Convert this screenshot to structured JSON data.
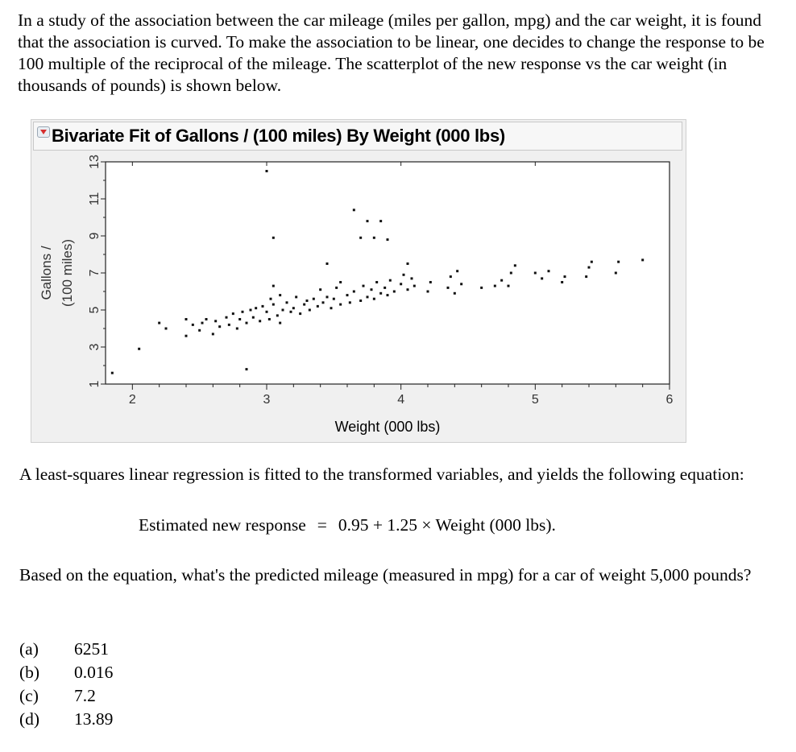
{
  "question": {
    "intro": "In a study of the association between the car mileage (miles per gallon, mpg) and the car weight, it is found that the association is curved. To make the association to be linear, one decides to change the response to be 100 multiple of the reciprocal of the mileage. The scatterplot of the new response vs the car weight (in thousands of pounds) is shown below.",
    "regression_text": "A least-squares linear regression is fitted to the transformed variables, and yields the following equation:",
    "equation_lhs": "Estimated new response",
    "equation_eq": "=",
    "equation_rhs": "0.95 + 1.25 × Weight (000 lbs).",
    "prompt": "Based on the equation, what's the predicted mileage (measured in mpg) for a car of weight 5,000 pounds?",
    "choices": [
      {
        "letter": "(a)",
        "text": "6251"
      },
      {
        "letter": "(b)",
        "text": "0.016"
      },
      {
        "letter": "(c)",
        "text": "7.2"
      },
      {
        "letter": "(d)",
        "text": "13.89"
      }
    ]
  },
  "panel": {
    "title": "Bivariate Fit of Gallons / (100 miles) By Weight (000 lbs)",
    "collapse_icon": "red-triangle-disclosure-icon"
  },
  "chart_data": {
    "type": "scatter",
    "title": "Bivariate Fit of Gallons / (100 miles) By Weight (000 lbs)",
    "xlabel": "Weight (000 lbs)",
    "ylabel": [
      "Gallons /",
      "(100 miles)"
    ],
    "xlim": [
      1.8,
      6.0
    ],
    "ylim": [
      1,
      13
    ],
    "xticks": [
      "2",
      "3",
      "4",
      "5",
      "6"
    ],
    "yticks": [
      "13",
      "11",
      "9",
      "7",
      "5",
      "3",
      "1"
    ],
    "grid": false,
    "points": [
      [
        1.85,
        1.6
      ],
      [
        2.05,
        2.9
      ],
      [
        2.2,
        4.3
      ],
      [
        2.25,
        4.0
      ],
      [
        2.4,
        3.6
      ],
      [
        2.4,
        4.5
      ],
      [
        2.45,
        4.2
      ],
      [
        2.5,
        3.9
      ],
      [
        2.52,
        4.3
      ],
      [
        2.55,
        4.5
      ],
      [
        2.6,
        3.7
      ],
      [
        2.62,
        4.4
      ],
      [
        2.65,
        4.1
      ],
      [
        2.7,
        4.6
      ],
      [
        2.72,
        4.2
      ],
      [
        2.75,
        4.8
      ],
      [
        2.78,
        4.0
      ],
      [
        2.8,
        4.5
      ],
      [
        2.82,
        4.9
      ],
      [
        2.85,
        4.3
      ],
      [
        2.85,
        1.8
      ],
      [
        2.88,
        5.0
      ],
      [
        2.9,
        4.6
      ],
      [
        2.92,
        5.1
      ],
      [
        2.95,
        4.4
      ],
      [
        2.97,
        5.2
      ],
      [
        3.0,
        4.9
      ],
      [
        3.0,
        12.5
      ],
      [
        3.02,
        4.5
      ],
      [
        3.03,
        5.6
      ],
      [
        3.05,
        5.3
      ],
      [
        3.05,
        6.3
      ],
      [
        3.08,
        4.7
      ],
      [
        3.1,
        4.3
      ],
      [
        3.1,
        5.8
      ],
      [
        3.12,
        5.0
      ],
      [
        3.05,
        8.9
      ],
      [
        3.15,
        5.4
      ],
      [
        3.18,
        4.9
      ],
      [
        3.2,
        5.1
      ],
      [
        3.22,
        5.7
      ],
      [
        3.25,
        4.8
      ],
      [
        3.28,
        5.3
      ],
      [
        3.3,
        5.5
      ],
      [
        3.32,
        5.0
      ],
      [
        3.35,
        5.6
      ],
      [
        3.38,
        5.2
      ],
      [
        3.4,
        6.1
      ],
      [
        3.42,
        5.4
      ],
      [
        3.45,
        5.7
      ],
      [
        3.45,
        7.5
      ],
      [
        3.48,
        5.1
      ],
      [
        3.5,
        5.6
      ],
      [
        3.52,
        6.2
      ],
      [
        3.55,
        5.3
      ],
      [
        3.55,
        6.5
      ],
      [
        3.6,
        5.8
      ],
      [
        3.62,
        5.4
      ],
      [
        3.65,
        6.0
      ],
      [
        3.65,
        10.4
      ],
      [
        3.7,
        5.5
      ],
      [
        3.7,
        8.9
      ],
      [
        3.72,
        6.3
      ],
      [
        3.75,
        5.7
      ],
      [
        3.75,
        9.8
      ],
      [
        3.78,
        6.1
      ],
      [
        3.8,
        5.6
      ],
      [
        3.8,
        8.9
      ],
      [
        3.82,
        6.5
      ],
      [
        3.85,
        5.9
      ],
      [
        3.85,
        9.8
      ],
      [
        3.88,
        6.2
      ],
      [
        3.9,
        5.8
      ],
      [
        3.9,
        8.8
      ],
      [
        3.92,
        6.6
      ],
      [
        3.95,
        6.0
      ],
      [
        4.0,
        6.4
      ],
      [
        4.02,
        6.9
      ],
      [
        4.05,
        6.1
      ],
      [
        4.05,
        7.5
      ],
      [
        4.08,
        6.7
      ],
      [
        4.1,
        6.3
      ],
      [
        4.2,
        6.0
      ],
      [
        4.22,
        6.5
      ],
      [
        4.35,
        6.2
      ],
      [
        4.37,
        6.8
      ],
      [
        4.4,
        5.9
      ],
      [
        4.42,
        7.1
      ],
      [
        4.45,
        6.4
      ],
      [
        4.6,
        6.2
      ],
      [
        4.7,
        6.3
      ],
      [
        4.75,
        6.6
      ],
      [
        4.8,
        6.3
      ],
      [
        4.82,
        7.0
      ],
      [
        4.85,
        7.4
      ],
      [
        5.0,
        7.0
      ],
      [
        5.05,
        6.7
      ],
      [
        5.1,
        7.1
      ],
      [
        5.2,
        6.5
      ],
      [
        5.22,
        6.8
      ],
      [
        5.38,
        6.8
      ],
      [
        5.4,
        7.3
      ],
      [
        5.42,
        7.6
      ],
      [
        5.6,
        7.0
      ],
      [
        5.62,
        7.6
      ],
      [
        5.8,
        7.7
      ]
    ]
  }
}
